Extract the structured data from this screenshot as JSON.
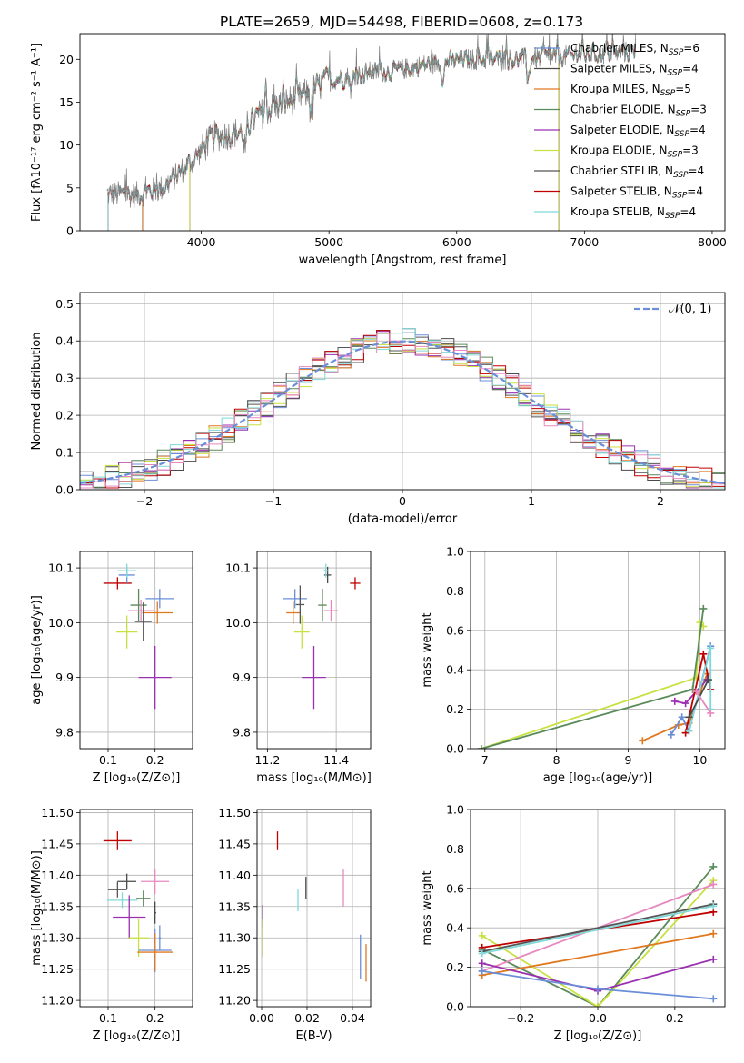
{
  "figure": {
    "title": "PLATE=2659, MJD=54498, FIBERID=0608, z=0.173"
  },
  "colors": {
    "Chabrier MILES": "#6a8fd8",
    "Salpeter MILES": "#4a4a4a",
    "Kroupa MILES": "#e07820",
    "Chabrier ELODIE": "#5a8a5a",
    "Salpeter ELODIE": "#9a30b0",
    "Kroupa ELODIE": "#c8e040",
    "Chabrier STELIB": "#555555",
    "Salpeter STELIB": "#c00000",
    "Kroupa STELIB": "#80d8d8",
    "data": "#808080",
    "gaussian": "#6a8fd8",
    "pink": "#e888c0"
  },
  "chart_data": [
    {
      "type": "line",
      "id": "spectrum",
      "title": "PLATE=2659, MJD=54498, FIBERID=0608, z=0.173",
      "xlabel": "wavelength [Angstrom, rest frame]",
      "ylabel": "Flux [fλ10⁻¹⁷ erg cm⁻² s⁻¹ A⁻¹]",
      "xlim": [
        3050,
        8100
      ],
      "ylim": [
        0,
        23
      ],
      "xticks": [
        4000,
        5000,
        6000,
        7000,
        8000
      ],
      "yticks": [
        0,
        5,
        10,
        15,
        20
      ],
      "grid": false,
      "legend_position": "top-right",
      "legend": [
        {
          "label": "Chabrier MILES, N",
          "sub": "SSP",
          "value": "=6",
          "key": "Chabrier MILES"
        },
        {
          "label": "Salpeter MILES, N",
          "sub": "SSP",
          "value": "=4",
          "key": "Salpeter MILES"
        },
        {
          "label": "Kroupa MILES, N",
          "sub": "SSP",
          "value": "=5",
          "key": "Kroupa MILES"
        },
        {
          "label": "Chabrier ELODIE, N",
          "sub": "SSP",
          "value": "=3",
          "key": "Chabrier ELODIE"
        },
        {
          "label": "Salpeter ELODIE, N",
          "sub": "SSP",
          "value": "=4",
          "key": "Salpeter ELODIE"
        },
        {
          "label": "Kroupa ELODIE, N",
          "sub": "SSP",
          "value": "=3",
          "key": "Kroupa ELODIE"
        },
        {
          "label": "Chabrier STELIB, N",
          "sub": "SSP",
          "value": "=4",
          "key": "Chabrier STELIB"
        },
        {
          "label": "Salpeter STELIB, N",
          "sub": "SSP",
          "value": "=4",
          "key": "Salpeter STELIB"
        },
        {
          "label": "Kroupa STELIB, N",
          "sub": "SSP",
          "value": "=4",
          "key": "Kroupa STELIB"
        }
      ],
      "continuum": [
        [
          3260,
          4.3
        ],
        [
          3500,
          4.2
        ],
        [
          3700,
          5.0
        ],
        [
          3950,
          8.5
        ],
        [
          4100,
          11.0
        ],
        [
          4300,
          11.5
        ],
        [
          4500,
          14.0
        ],
        [
          4800,
          15.8
        ],
        [
          5000,
          17.5
        ],
        [
          5300,
          18.5
        ],
        [
          5500,
          18.6
        ],
        [
          5800,
          19.5
        ],
        [
          6100,
          20.0
        ],
        [
          6400,
          20.0
        ],
        [
          6700,
          20.2
        ],
        [
          7000,
          20.5
        ],
        [
          7300,
          20.8
        ],
        [
          7400,
          20.9
        ]
      ],
      "model_ranges": {
        "Chabrier MILES": [
          3540,
          7410
        ],
        "Salpeter MILES": [
          3540,
          7410
        ],
        "Kroupa MILES": [
          3540,
          7410
        ],
        "Chabrier ELODIE": [
          3910,
          6800
        ],
        "Salpeter ELODIE": [
          3910,
          6800
        ],
        "Kroupa ELODIE": [
          3910,
          6800
        ],
        "Chabrier STELIB": [
          3270,
          9300
        ],
        "Salpeter STELIB": [
          3270,
          9300
        ],
        "Kroupa STELIB": [
          3270,
          9300
        ]
      }
    },
    {
      "type": "line",
      "id": "residuals",
      "xlabel": "(data-model)/error",
      "ylabel": "Normed distribution",
      "xlim": [
        -2.5,
        2.5
      ],
      "ylim": [
        0,
        0.53
      ],
      "xticks": [
        -2,
        -1,
        0,
        1,
        2
      ],
      "yticks": [
        0.0,
        0.1,
        0.2,
        0.3,
        0.4,
        0.5
      ],
      "grid": true,
      "legend_position": "top-right",
      "legend": [
        {
          "label": "𝒩(0, 1)",
          "key": "gaussian"
        }
      ],
      "bin_width": 0.1,
      "series_keys": [
        "Chabrier MILES",
        "Salpeter MILES",
        "Kroupa MILES",
        "Chabrier ELODIE",
        "Salpeter ELODIE",
        "Kroupa ELODIE",
        "Chabrier STELIB",
        "Salpeter STELIB",
        "Kroupa STELIB",
        "pink"
      ]
    },
    {
      "type": "scatter",
      "id": "age-vs-z",
      "xlabel": "Z [log₁₀(Z/Z⊙)]",
      "ylabel": "age  [log₁₀(age/yr)]",
      "xlim": [
        0.04,
        0.28
      ],
      "ylim": [
        9.77,
        10.13
      ],
      "xticks": [
        0.1,
        0.2
      ],
      "yticks": [
        9.8,
        9.9,
        10.0,
        10.1
      ],
      "grid": true,
      "points": [
        {
          "key": "Salpeter STELIB",
          "x": 0.12,
          "y": 10.072,
          "dx": 0.06,
          "dy": 0.022
        },
        {
          "key": "Chabrier MILES",
          "x": 0.14,
          "y": 10.087,
          "dx": 0.035,
          "dy": 0.03
        },
        {
          "key": "Chabrier ELODIE",
          "x": 0.165,
          "y": 10.032,
          "dx": 0.035,
          "dy": 0.06
        },
        {
          "key": "Chabrier MILES",
          "x": 0.21,
          "y": 10.044,
          "dx": 0.06,
          "dy": 0.035
        },
        {
          "key": "pink",
          "x": 0.17,
          "y": 10.022,
          "dx": 0.055,
          "dy": 0.04
        },
        {
          "key": "Kroupa MILES",
          "x": 0.205,
          "y": 10.018,
          "dx": 0.065,
          "dy": 0.04
        },
        {
          "key": "Kroupa ELODIE",
          "x": 0.14,
          "y": 9.983,
          "dx": 0.045,
          "dy": 0.06
        },
        {
          "key": "Salpeter ELODIE",
          "x": 0.2,
          "y": 9.9,
          "dx": 0.07,
          "dy": 0.115
        },
        {
          "key": "Chabrier STELIB",
          "x": 0.175,
          "y": 10.002,
          "dx": 0.035,
          "dy": 0.07
        },
        {
          "key": "Kroupa STELIB",
          "x": 0.14,
          "y": 10.095,
          "dx": 0.04,
          "dy": 0.025
        }
      ]
    },
    {
      "type": "scatter",
      "id": "age-vs-mass",
      "xlabel": "mass [log₁₀(M/M⊙)]",
      "ylabel": "",
      "xlim": [
        11.17,
        11.5
      ],
      "ylim": [
        9.77,
        10.13
      ],
      "xticks": [
        11.2,
        11.4
      ],
      "yticks": [
        9.8,
        9.9,
        10.0,
        10.1
      ],
      "grid": true,
      "points": [
        {
          "key": "Salpeter STELIB",
          "x": 11.455,
          "y": 10.072,
          "dx": 0.03,
          "dy": 0.022
        },
        {
          "key": "Chabrier MILES",
          "x": 11.28,
          "y": 10.044,
          "dx": 0.07,
          "dy": 0.035
        },
        {
          "key": "Salpeter MILES",
          "x": 11.375,
          "y": 10.087,
          "dx": 0.02,
          "dy": 0.03
        },
        {
          "key": "Kroupa MILES",
          "x": 11.275,
          "y": 10.018,
          "dx": 0.04,
          "dy": 0.04
        },
        {
          "key": "pink",
          "x": 11.385,
          "y": 10.022,
          "dx": 0.04,
          "dy": 0.04
        },
        {
          "key": "Kroupa ELODIE",
          "x": 11.3,
          "y": 9.983,
          "dx": 0.045,
          "dy": 0.06
        },
        {
          "key": "Salpeter ELODIE",
          "x": 11.335,
          "y": 9.9,
          "dx": 0.07,
          "dy": 0.115
        },
        {
          "key": "Chabrier ELODIE",
          "x": 11.36,
          "y": 10.032,
          "dx": 0.025,
          "dy": 0.06
        },
        {
          "key": "Chabrier STELIB",
          "x": 11.295,
          "y": 10.033,
          "dx": 0.025,
          "dy": 0.07
        },
        {
          "key": "Kroupa STELIB",
          "x": 11.37,
          "y": 10.095,
          "dx": 0.015,
          "dy": 0.025
        }
      ]
    },
    {
      "type": "line",
      "id": "mass-weight-vs-age",
      "xlabel": "age  [log₁₀(age/yr)]",
      "ylabel": "mass weight",
      "xlim": [
        6.8,
        10.35
      ],
      "ylim": [
        0,
        1.0
      ],
      "xticks": [
        7,
        8,
        9,
        10
      ],
      "yticks": [
        0.0,
        0.2,
        0.4,
        0.6,
        0.8,
        1.0
      ],
      "grid": true,
      "series": [
        {
          "key": "Kroupa ELODIE",
          "points": [
            [
              6.95,
              0.0
            ],
            [
              9.95,
              0.36
            ],
            [
              10.0,
              0.64
            ],
            [
              10.05,
              0.62
            ]
          ]
        },
        {
          "key": "Chabrier ELODIE",
          "points": [
            [
              6.95,
              0.0
            ],
            [
              9.9,
              0.3
            ],
            [
              10.05,
              0.71
            ]
          ]
        },
        {
          "key": "Kroupa MILES",
          "points": [
            [
              9.2,
              0.04
            ],
            [
              9.7,
              0.12
            ],
            [
              9.85,
              0.13
            ],
            [
              10.1,
              0.38
            ]
          ]
        },
        {
          "key": "Chabrier MILES",
          "points": [
            [
              9.6,
              0.07
            ],
            [
              9.75,
              0.16
            ],
            [
              9.85,
              0.09
            ],
            [
              10.15,
              0.52
            ]
          ]
        },
        {
          "key": "Salpeter ELODIE",
          "points": [
            [
              9.65,
              0.24
            ],
            [
              9.8,
              0.23
            ],
            [
              10.1,
              0.35
            ]
          ]
        },
        {
          "key": "Salpeter STELIB",
          "points": [
            [
              9.8,
              0.08
            ],
            [
              10.05,
              0.48
            ],
            [
              10.15,
              0.3
            ]
          ]
        },
        {
          "key": "Kroupa STELIB",
          "points": [
            [
              9.85,
              0.09
            ],
            [
              10.15,
              0.51
            ],
            [
              10.15,
              0.2
            ]
          ]
        },
        {
          "key": "Salpeter MILES",
          "points": [
            [
              9.85,
              0.16
            ],
            [
              10.12,
              0.35
            ]
          ]
        },
        {
          "key": "pink",
          "points": [
            [
              9.95,
              0.29
            ],
            [
              10.15,
              0.18
            ]
          ]
        }
      ]
    },
    {
      "type": "scatter",
      "id": "mass-vs-z",
      "xlabel": "Z [log₁₀(Z/Z⊙)]",
      "ylabel": "mass [log₁₀(M/M⊙)]",
      "xlim": [
        0.04,
        0.28
      ],
      "ylim": [
        11.19,
        11.505
      ],
      "xticks": [
        0.1,
        0.2
      ],
      "yticks": [
        11.2,
        11.25,
        11.3,
        11.35,
        11.4,
        11.45,
        11.5
      ],
      "grid": true,
      "points": [
        {
          "key": "Salpeter STELIB",
          "x": 0.12,
          "y": 11.455,
          "dx": 0.06,
          "dy": 0.03
        },
        {
          "key": "Salpeter MILES",
          "x": 0.14,
          "y": 11.39,
          "dx": 0.04,
          "dy": 0.025
        },
        {
          "key": "pink",
          "x": 0.2,
          "y": 11.39,
          "dx": 0.06,
          "dy": 0.04
        },
        {
          "key": "Chabrier STELIB",
          "x": 0.12,
          "y": 11.377,
          "dx": 0.04,
          "dy": 0.025
        },
        {
          "key": "Chabrier ELODIE",
          "x": 0.175,
          "y": 11.363,
          "dx": 0.03,
          "dy": 0.025
        },
        {
          "key": "Kroupa STELIB",
          "x": 0.13,
          "y": 11.36,
          "dx": 0.065,
          "dy": 0.025
        },
        {
          "key": "Salpeter ELODIE",
          "x": 0.145,
          "y": 11.333,
          "dx": 0.07,
          "dy": 0.07
        },
        {
          "key": "Kroupa ELODIE",
          "x": 0.165,
          "y": 11.3,
          "dx": 0.045,
          "dy": 0.06
        },
        {
          "key": "Chabrier MILES",
          "x": 0.2,
          "y": 11.28,
          "dx": 0.07,
          "dy": 0.07
        },
        {
          "key": "Kroupa MILES",
          "x": 0.2,
          "y": 11.277,
          "dx": 0.075,
          "dy": 0.06
        },
        {
          "key": "Chabrier MILES",
          "x": 0.21,
          "y": 11.3,
          "dx": 0.005,
          "dy": 0.04
        },
        {
          "key": "Salpeter MILES",
          "x": 0.2,
          "y": 11.34,
          "dx": 0.005,
          "dy": 0.035
        }
      ]
    },
    {
      "type": "scatter",
      "id": "mass-vs-ebv",
      "xlabel": "E(B-V)",
      "ylabel": "",
      "xlim": [
        -0.002,
        0.048
      ],
      "ylim": [
        11.19,
        11.505
      ],
      "xticks": [
        0.0,
        0.02,
        0.04
      ],
      "yticks": [
        11.2,
        11.25,
        11.3,
        11.35,
        11.4,
        11.45,
        11.5
      ],
      "grid": true,
      "points": [
        {
          "key": "Salpeter STELIB",
          "x": 0.007,
          "y": 11.455,
          "dx": 0,
          "dy": 0.03
        },
        {
          "key": "Salpeter ELODIE",
          "x": 0.0005,
          "y": 11.335,
          "dx": 0,
          "dy": 0.035
        },
        {
          "key": "Kroupa ELODIE",
          "x": 0.0005,
          "y": 11.3,
          "dx": 0,
          "dy": 0.06
        },
        {
          "key": "Kroupa STELIB",
          "x": 0.016,
          "y": 11.36,
          "dx": 0,
          "dy": 0.035
        },
        {
          "key": "Chabrier STELIB",
          "x": 0.0195,
          "y": 11.38,
          "dx": 0,
          "dy": 0.035
        },
        {
          "key": "pink",
          "x": 0.036,
          "y": 11.38,
          "dx": 0,
          "dy": 0.06
        },
        {
          "key": "Chabrier MILES",
          "x": 0.0435,
          "y": 11.27,
          "dx": 0,
          "dy": 0.07
        },
        {
          "key": "Kroupa MILES",
          "x": 0.046,
          "y": 11.26,
          "dx": 0,
          "dy": 0.06
        }
      ]
    },
    {
      "type": "line",
      "id": "mass-weight-vs-z",
      "xlabel": "Z [log₁₀(Z/Z⊙)]",
      "ylabel": "mass weight",
      "xlim": [
        -0.33,
        0.33
      ],
      "ylim": [
        0,
        1.0
      ],
      "xticks": [
        -0.2,
        0.0,
        0.2
      ],
      "yticks": [
        0.0,
        0.2,
        0.4,
        0.6,
        0.8,
        1.0
      ],
      "grid": true,
      "series": [
        {
          "key": "Chabrier ELODIE",
          "points": [
            [
              -0.3,
              0.29
            ],
            [
              0.0,
              0.0
            ],
            [
              0.3,
              0.71
            ]
          ]
        },
        {
          "key": "Kroupa ELODIE",
          "points": [
            [
              -0.3,
              0.36
            ],
            [
              0.0,
              0.0
            ],
            [
              0.3,
              0.64
            ]
          ]
        },
        {
          "key": "pink",
          "points": [
            [
              -0.3,
              0.18
            ],
            [
              0.3,
              0.62
            ]
          ]
        },
        {
          "key": "Salpeter STELIB",
          "points": [
            [
              -0.3,
              0.3
            ],
            [
              0.3,
              0.48
            ]
          ]
        },
        {
          "key": "Chabrier STELIB",
          "points": [
            [
              -0.3,
              0.28
            ],
            [
              0.3,
              0.52
            ]
          ]
        },
        {
          "key": "Kroupa STELIB",
          "points": [
            [
              -0.3,
              0.27
            ],
            [
              0.3,
              0.51
            ]
          ]
        },
        {
          "key": "Kroupa MILES",
          "points": [
            [
              -0.3,
              0.16
            ],
            [
              0.3,
              0.37
            ]
          ]
        },
        {
          "key": "Salpeter ELODIE",
          "points": [
            [
              -0.3,
              0.22
            ],
            [
              0.0,
              0.08
            ],
            [
              0.3,
              0.24
            ]
          ]
        },
        {
          "key": "Chabrier MILES",
          "points": [
            [
              -0.3,
              0.18
            ],
            [
              0.0,
              0.09
            ],
            [
              0.3,
              0.04
            ]
          ]
        }
      ]
    }
  ]
}
